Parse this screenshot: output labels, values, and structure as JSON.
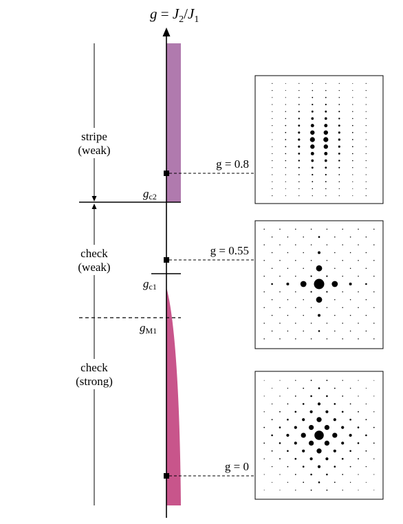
{
  "axis": {
    "label": "g = J2/J1",
    "label_parts": {
      "g": "g",
      "eq": " = ",
      "J": "J",
      "sub2": "2",
      "slash": "/",
      "sub1": "1"
    }
  },
  "phases": [
    {
      "name": "stripe",
      "strength": "(weak)"
    },
    {
      "name": "check",
      "strength": "(weak)"
    },
    {
      "name": "check",
      "strength": "(strong)"
    }
  ],
  "critical_points": [
    {
      "symbol": "g",
      "subscript": "c2"
    },
    {
      "symbol": "g",
      "subscript": "c1"
    },
    {
      "symbol": "g",
      "subscript": "M1"
    }
  ],
  "samples": [
    {
      "label": "g = 0.8",
      "pattern": "stripe"
    },
    {
      "label": "g = 0.55",
      "pattern": "check-weak"
    },
    {
      "label": "g = 0",
      "pattern": "check-strong"
    }
  ],
  "colors": {
    "stripe_bar": "#b07aae",
    "check_bar": "#c8558b",
    "ink": "#000000"
  }
}
